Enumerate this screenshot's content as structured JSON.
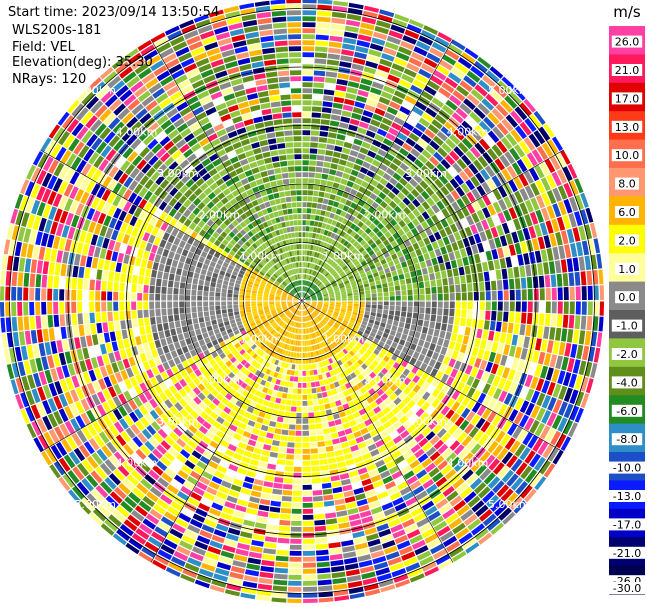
{
  "header": {
    "start_time": "Start time: 2023/09/14 13:50:54",
    "instrument": "WLS200s-181",
    "field": "Field: VEL",
    "elevation": "Elevation(deg): 35.30",
    "nrays": "NRays: 120"
  },
  "chart_data": {
    "type": "heatmap",
    "subtype": "polar-ppi",
    "unit": "m/s",
    "range_rings_km": [
      1.0,
      2.0,
      3.0,
      4.0,
      5.0
    ],
    "ring_labels": [
      "1.00km",
      "2.00km",
      "3.00km",
      "4.00km",
      "5.00km"
    ],
    "n_rays": 120,
    "elevation_deg": 35.3,
    "colorbar": {
      "ticks": [
        26.0,
        21.0,
        17.0,
        13.0,
        10.0,
        8.0,
        6.0,
        2.0,
        1.0,
        0.0,
        -1.0,
        -2.0,
        -4.0,
        -6.0,
        -8.0,
        -10.0,
        -13.0,
        -17.0,
        -21.0,
        -26.0,
        -30.0
      ],
      "tick_labels": [
        "26.0",
        "21.0",
        "17.0",
        "13.0",
        "10.0",
        "8.0",
        "6.0",
        "2.0",
        "1.0",
        "0.0",
        "-1.0",
        "-2.0",
        "-4.0",
        "-6.0",
        "-8.0",
        "-10.0",
        "-13.0",
        "-17.0",
        "-21.0",
        "-26.0",
        "-30.0"
      ],
      "colors": [
        "#ff3fa3",
        "#ff1a5e",
        "#e00000",
        "#ff3a18",
        "#ff6f4e",
        "#ff9870",
        "#ffb400",
        "#ffff00",
        "#ffff9a",
        "#8a8a8a",
        "#5e5e5e",
        "#8fc73e",
        "#5f8f1a",
        "#228b22",
        "#2e8ec7",
        "#1c4fc7",
        "#0a1cff",
        "#0000c8",
        "#00006e",
        "#000050"
      ]
    }
  }
}
